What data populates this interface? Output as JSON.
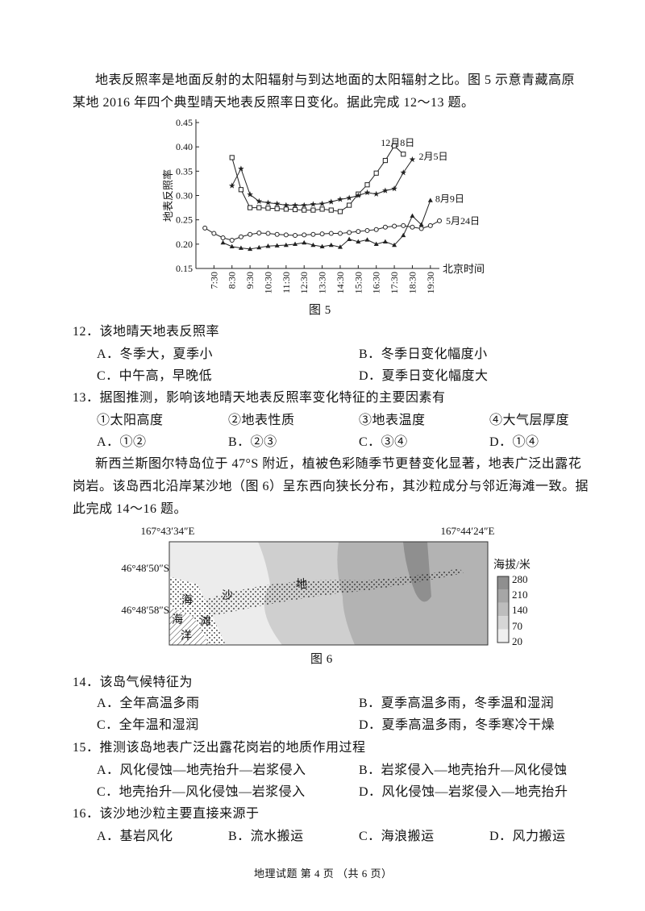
{
  "intro1": {
    "lines": [
      "地表反照率是地面反射的太阳辐射与到达地面的太阳辐射之比。图 5 示意青藏高原",
      "某地 2016 年四个典型晴天地表反照率日变化。据此完成 12～13 题。"
    ]
  },
  "figure5": {
    "caption": "图 5",
    "chart_data": {
      "type": "line",
      "y_label": "地表反照率",
      "x_label": "北京时间",
      "xlim": [
        6.5,
        20.0
      ],
      "xticks": [
        {
          "value": 7.5,
          "label": "7:30"
        },
        {
          "value": 8.5,
          "label": "8:30"
        },
        {
          "value": 9.5,
          "label": "9:30"
        },
        {
          "value": 10.5,
          "label": "10:30"
        },
        {
          "value": 11.5,
          "label": "11:30"
        },
        {
          "value": 12.5,
          "label": "12:30"
        },
        {
          "value": 13.5,
          "label": "13:30"
        },
        {
          "value": 14.5,
          "label": "14:30"
        },
        {
          "value": 15.5,
          "label": "15:30"
        },
        {
          "value": 16.5,
          "label": "16:30"
        },
        {
          "value": 17.5,
          "label": "17:30"
        },
        {
          "value": 18.5,
          "label": "18:30"
        },
        {
          "value": 19.5,
          "label": "19:30"
        }
      ],
      "ylim": [
        0.15,
        0.45
      ],
      "yticks": [
        0.15,
        {
          "value": 0.2,
          "label": "0.20"
        },
        0.25,
        {
          "value": 0.3,
          "label": "0.30"
        },
        0.35,
        {
          "value": 0.4,
          "label": "0.40"
        },
        0.45
      ],
      "series": [
        {
          "name": "12月8日",
          "color": "#222222",
          "marker": "square-open",
          "x": [
            8.5,
            9.0,
            9.5,
            10.0,
            10.5,
            11.0,
            11.5,
            12.0,
            12.5,
            13.0,
            13.5,
            14.0,
            14.5,
            15.0,
            15.5,
            16.0,
            16.5,
            17.0,
            17.5,
            18.0
          ],
          "values": [
            0.378,
            0.312,
            0.275,
            0.275,
            0.274,
            0.273,
            0.272,
            0.271,
            0.27,
            0.27,
            0.272,
            0.27,
            0.267,
            0.28,
            0.303,
            0.322,
            0.346,
            0.372,
            0.402,
            0.385
          ]
        },
        {
          "name": "2月5日",
          "color": "#222222",
          "marker": "star",
          "x": [
            8.5,
            9.0,
            9.5,
            10.0,
            10.5,
            11.0,
            11.5,
            12.0,
            12.5,
            13.0,
            13.5,
            14.0,
            14.5,
            15.0,
            15.5,
            16.0,
            16.5,
            17.0,
            17.5,
            18.0,
            18.5
          ],
          "values": [
            0.32,
            0.355,
            0.302,
            0.288,
            0.285,
            0.283,
            0.28,
            0.28,
            0.28,
            0.282,
            0.283,
            0.287,
            0.292,
            0.295,
            0.3,
            0.306,
            0.303,
            0.31,
            0.314,
            0.347,
            0.374
          ]
        },
        {
          "name": "8月9日",
          "color": "#222222",
          "marker": "triangle",
          "x": [
            8.0,
            8.5,
            9.0,
            9.5,
            10.0,
            10.5,
            11.0,
            11.5,
            12.0,
            12.5,
            13.0,
            13.5,
            14.0,
            14.5,
            15.0,
            15.5,
            16.0,
            16.5,
            17.0,
            17.5,
            18.0,
            18.5,
            19.0,
            19.5
          ],
          "values": [
            0.203,
            0.195,
            0.192,
            0.19,
            0.193,
            0.196,
            0.197,
            0.198,
            0.2,
            0.203,
            0.198,
            0.195,
            0.198,
            0.194,
            0.21,
            0.205,
            0.209,
            0.2,
            0.205,
            0.198,
            0.218,
            0.258,
            0.24,
            0.29
          ]
        },
        {
          "name": "5月24日",
          "color": "#222222",
          "marker": "circle-open",
          "x": [
            7.0,
            7.5,
            8.0,
            8.5,
            9.0,
            9.5,
            10.0,
            10.5,
            11.0,
            11.5,
            12.0,
            12.5,
            13.0,
            13.5,
            14.0,
            14.5,
            15.0,
            15.5,
            16.0,
            16.5,
            17.0,
            17.5,
            18.0,
            18.5,
            19.0,
            19.5,
            20.0
          ],
          "values": [
            0.233,
            0.222,
            0.213,
            0.208,
            0.215,
            0.22,
            0.223,
            0.222,
            0.22,
            0.219,
            0.218,
            0.219,
            0.22,
            0.221,
            0.222,
            0.222,
            0.224,
            0.226,
            0.228,
            0.23,
            0.235,
            0.237,
            0.238,
            0.235,
            0.232,
            0.238,
            0.248
          ]
        }
      ]
    }
  },
  "q12": {
    "stem": "12．该地晴天地表反照率",
    "options": [
      "A．冬季大，夏季小",
      "B．冬季日变化幅度小",
      "C．中午高，早晚低",
      "D．夏季日变化幅度大"
    ]
  },
  "q13": {
    "stem": "13．据图推测，影响该地晴天地表反照率变化特征的主要因素有",
    "items": [
      "①太阳高度",
      "②地表性质",
      "③地表温度",
      "④大气层厚度"
    ],
    "options": [
      "A．①②",
      "B．②③",
      "C．③④",
      "D．①④"
    ]
  },
  "intro2": {
    "lines": [
      "新西兰斯图尔特岛位于 47°S 附近，植被色彩随季节更替变化显著，地表广泛出露花",
      "岗岩。该岛西北沿岸某沙地（图 6）呈东西向狭长分布，其沙粒成分与邻近海滩一致。据",
      "此完成 14～16 题。"
    ]
  },
  "figure6": {
    "caption": "图 6",
    "lon_labels": [
      "167°43′34″E",
      "167°44′24″E"
    ],
    "lat_labels": [
      "46°48′50″S",
      "46°48′58″S"
    ],
    "place_labels": [
      "海",
      "沙",
      "地",
      "海",
      "滩",
      "洋"
    ],
    "legend_title": "海拔/米",
    "legend_ticks": [
      280,
      210,
      140,
      70,
      20
    ]
  },
  "q14": {
    "stem": "14．该岛气候特征为",
    "options": [
      "A．全年高温多雨",
      "B．夏季高温多雨，冬季温和湿润",
      "C．全年温和湿润",
      "D．夏季高温多雨，冬季寒冷干燥"
    ]
  },
  "q15": {
    "stem": "15．推测该岛地表广泛出露花岗岩的地质作用过程",
    "options": [
      "A．风化侵蚀—地壳抬升—岩浆侵入",
      "B．岩浆侵入—地壳抬升—风化侵蚀",
      "C．地壳抬升—风化侵蚀—岩浆侵入",
      "D．风化侵蚀—岩浆侵入—地壳抬升"
    ]
  },
  "q16": {
    "stem": "16．该沙地沙粒主要直接来源于",
    "options": [
      "A．基岩风化",
      "B．流水搬运",
      "C．海浪搬运",
      "D．风力搬运"
    ]
  },
  "footer": "地理试题 第 4 页 （共 6 页）"
}
